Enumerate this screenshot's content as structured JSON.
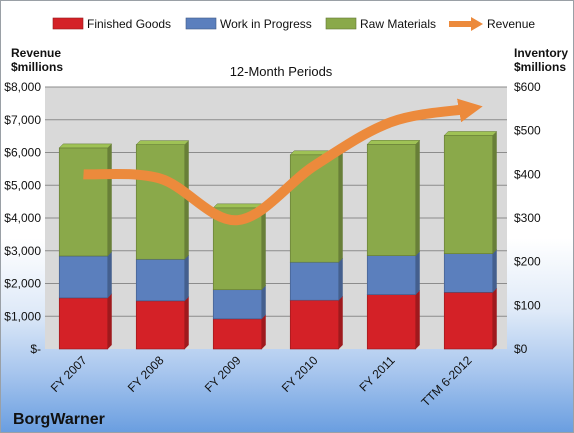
{
  "chart_data": {
    "type": "bar",
    "subtitle": "12-Month Periods",
    "categories": [
      "FY 2007",
      "FY 2008",
      "FY 2009",
      "FY 2010",
      "FY 2011",
      "TTM 6-2012"
    ],
    "series": [
      {
        "name": "Finished Goods",
        "values": [
          1.56,
          1.47,
          0.92,
          1.49,
          1.66,
          1.73
        ],
        "color": "#d42127",
        "axis": "left"
      },
      {
        "name": "Work in Progress",
        "values": [
          1.28,
          1.27,
          0.89,
          1.16,
          1.19,
          1.18
        ],
        "color": "#5b7fbd",
        "axis": "left"
      },
      {
        "name": "Raw Materials",
        "values": [
          3.3,
          3.5,
          2.5,
          3.28,
          3.4,
          3.61
        ],
        "color": "#8aa94a",
        "axis": "left"
      },
      {
        "name": "Revenue",
        "type": "line",
        "values": [
          400,
          390,
          295,
          420,
          520,
          550
        ],
        "color": "#ec8a3c",
        "axis": "right"
      }
    ],
    "left_axis": {
      "title_line1": "Revenue",
      "title_line2": "$millions",
      "ylim": [
        0,
        8000
      ],
      "ticks": [
        "$-",
        "$1,000",
        "$2,000",
        "$3,000",
        "$4,000",
        "$5,000",
        "$6,000",
        "$7,000",
        "$8,000"
      ]
    },
    "right_axis": {
      "title_line1": "Inventory",
      "title_line2": "$millions",
      "ylim": [
        0,
        600
      ],
      "ticks": [
        "$0",
        "$100",
        "$200",
        "$300",
        "$400",
        "$500",
        "$600"
      ]
    },
    "legend_position": "top",
    "grid": true
  },
  "brand": "BorgWarner",
  "colors": {
    "plot_bg": "#d9d9d9",
    "grid": "#8c8c8c"
  }
}
